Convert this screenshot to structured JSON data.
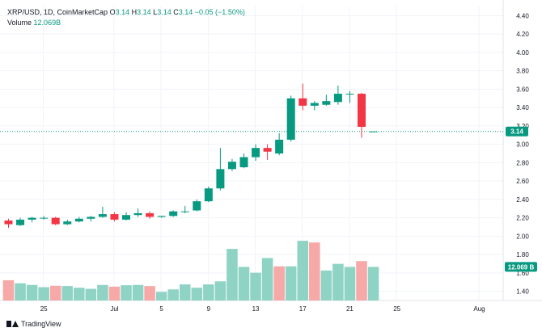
{
  "legend": {
    "symbol": "XRP/USD, 1D, CoinMarketCap",
    "o_label": "O",
    "o": "3.14",
    "h_label": "H",
    "h": "3.14",
    "l_label": "L",
    "l": "3.14",
    "c_label": "C",
    "c": "3.14",
    "change": "−0.05 (−1.50%)",
    "volume_label": "Volume",
    "volume": "12.069B"
  },
  "brand": {
    "name": "TradingView"
  },
  "price_badge": "3.14",
  "volume_badge": "12.069 B",
  "colors": {
    "up": "#089981",
    "down": "#f23645",
    "vol_up": "#8fd3c4",
    "vol_down": "#f7a9a7",
    "grid": "#f0f3fa",
    "badge": "#089981"
  },
  "chart_data": {
    "type": "candlestick",
    "title": "XRP/USD, 1D, CoinMarketCap",
    "ylim": [
      1.3,
      4.5
    ],
    "y_ticks": [
      "1.40",
      "1.60",
      "1.80",
      "2.00",
      "2.20",
      "2.40",
      "2.60",
      "2.80",
      "3.00",
      "3.20",
      "3.40",
      "3.60",
      "3.80",
      "4.00",
      "4.20",
      "4.40"
    ],
    "x_ticks": [
      {
        "label": "25",
        "index": 3
      },
      {
        "label": "Jul",
        "index": 9
      },
      {
        "label": "5",
        "index": 13
      },
      {
        "label": "9",
        "index": 17
      },
      {
        "label": "13",
        "index": 21
      },
      {
        "label": "17",
        "index": 25
      },
      {
        "label": "21",
        "index": 29
      },
      {
        "label": "25",
        "index": 33
      },
      {
        "label": "Aug",
        "index": 40
      }
    ],
    "last_price": 3.14,
    "candles": [
      {
        "o": 2.17,
        "h": 2.19,
        "l": 2.09,
        "c": 2.13
      },
      {
        "o": 2.12,
        "h": 2.2,
        "l": 2.11,
        "c": 2.18
      },
      {
        "o": 2.18,
        "h": 2.21,
        "l": 2.15,
        "c": 2.2
      },
      {
        "o": 2.2,
        "h": 2.22,
        "l": 2.18,
        "c": 2.2
      },
      {
        "o": 2.2,
        "h": 2.21,
        "l": 2.12,
        "c": 2.13
      },
      {
        "o": 2.13,
        "h": 2.18,
        "l": 2.12,
        "c": 2.16
      },
      {
        "o": 2.16,
        "h": 2.21,
        "l": 2.15,
        "c": 2.19
      },
      {
        "o": 2.19,
        "h": 2.22,
        "l": 2.16,
        "c": 2.21
      },
      {
        "o": 2.21,
        "h": 2.32,
        "l": 2.2,
        "c": 2.24
      },
      {
        "o": 2.24,
        "h": 2.26,
        "l": 2.16,
        "c": 2.18
      },
      {
        "o": 2.18,
        "h": 2.26,
        "l": 2.17,
        "c": 2.23
      },
      {
        "o": 2.23,
        "h": 2.3,
        "l": 2.21,
        "c": 2.25
      },
      {
        "o": 2.25,
        "h": 2.27,
        "l": 2.19,
        "c": 2.21
      },
      {
        "o": 2.21,
        "h": 2.22,
        "l": 2.2,
        "c": 2.22
      },
      {
        "o": 2.22,
        "h": 2.28,
        "l": 2.21,
        "c": 2.27
      },
      {
        "o": 2.27,
        "h": 2.33,
        "l": 2.25,
        "c": 2.27
      },
      {
        "o": 2.28,
        "h": 2.4,
        "l": 2.27,
        "c": 2.38
      },
      {
        "o": 2.38,
        "h": 2.54,
        "l": 2.37,
        "c": 2.52
      },
      {
        "o": 2.52,
        "h": 2.96,
        "l": 2.5,
        "c": 2.73
      },
      {
        "o": 2.73,
        "h": 2.84,
        "l": 2.71,
        "c": 2.81
      },
      {
        "o": 2.75,
        "h": 2.9,
        "l": 2.74,
        "c": 2.86
      },
      {
        "o": 2.86,
        "h": 3.0,
        "l": 2.82,
        "c": 2.96
      },
      {
        "o": 2.96,
        "h": 3.0,
        "l": 2.83,
        "c": 2.92
      },
      {
        "o": 2.9,
        "h": 3.12,
        "l": 2.88,
        "c": 3.05
      },
      {
        "o": 3.05,
        "h": 3.53,
        "l": 3.03,
        "c": 3.5
      },
      {
        "o": 3.5,
        "h": 3.66,
        "l": 3.37,
        "c": 3.42
      },
      {
        "o": 3.42,
        "h": 3.47,
        "l": 3.37,
        "c": 3.45
      },
      {
        "o": 3.43,
        "h": 3.54,
        "l": 3.42,
        "c": 3.47
      },
      {
        "o": 3.46,
        "h": 3.64,
        "l": 3.43,
        "c": 3.55
      },
      {
        "o": 3.55,
        "h": 3.58,
        "l": 3.45,
        "c": 3.55
      },
      {
        "o": 3.55,
        "h": 3.56,
        "l": 3.07,
        "c": 3.19
      },
      {
        "o": 3.14,
        "h": 3.14,
        "l": 3.14,
        "c": 3.14
      }
    ],
    "volume": [
      {
        "v": 0.73,
        "up": false
      },
      {
        "v": 0.62,
        "up": true
      },
      {
        "v": 0.56,
        "up": true
      },
      {
        "v": 0.48,
        "up": true
      },
      {
        "v": 0.53,
        "up": false
      },
      {
        "v": 0.52,
        "up": true
      },
      {
        "v": 0.46,
        "up": true
      },
      {
        "v": 0.42,
        "up": true
      },
      {
        "v": 0.56,
        "up": true
      },
      {
        "v": 0.5,
        "up": false
      },
      {
        "v": 0.55,
        "up": true
      },
      {
        "v": 0.56,
        "up": true
      },
      {
        "v": 0.52,
        "up": false
      },
      {
        "v": 0.31,
        "up": true
      },
      {
        "v": 0.4,
        "up": true
      },
      {
        "v": 0.58,
        "up": true
      },
      {
        "v": 0.46,
        "up": true
      },
      {
        "v": 0.58,
        "up": true
      },
      {
        "v": 0.69,
        "up": true
      },
      {
        "v": 1.86,
        "up": true
      },
      {
        "v": 1.21,
        "up": true
      },
      {
        "v": 1.0,
        "up": true
      },
      {
        "v": 1.53,
        "up": true
      },
      {
        "v": 1.23,
        "up": false
      },
      {
        "v": 1.23,
        "up": true
      },
      {
        "v": 2.15,
        "up": true
      },
      {
        "v": 2.09,
        "up": false
      },
      {
        "v": 1.08,
        "up": true
      },
      {
        "v": 1.32,
        "up": true
      },
      {
        "v": 1.21,
        "up": true
      },
      {
        "v": 1.42,
        "up": false
      },
      {
        "v": 1.21,
        "up": true
      }
    ],
    "volume_ylim": [
      0,
      3.2
    ]
  }
}
